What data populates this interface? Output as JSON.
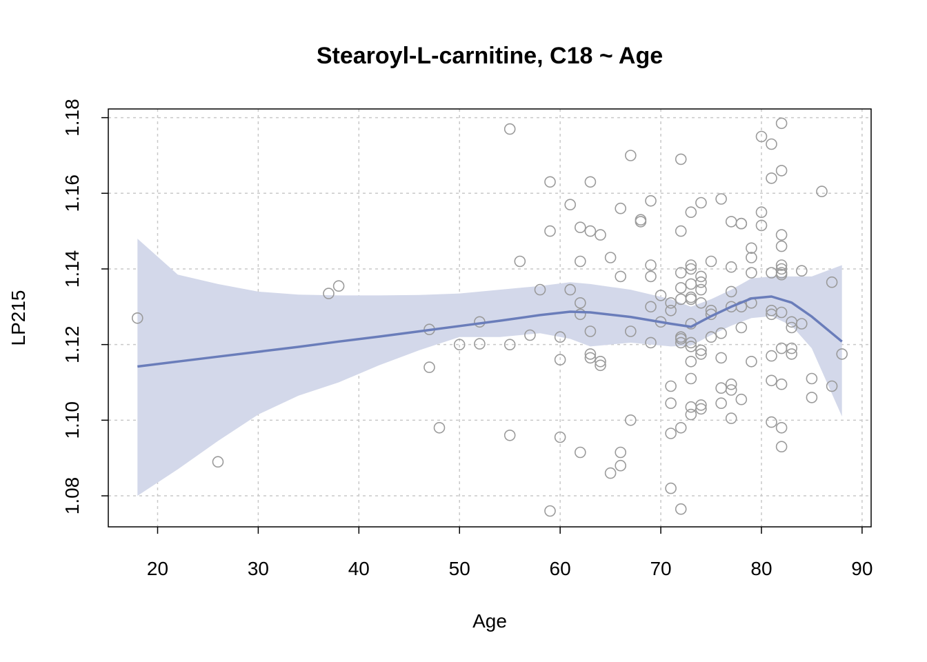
{
  "chart_data": {
    "type": "scatter",
    "title": "Stearoyl-L-carnitine, C18 ~ Age",
    "xlabel": "Age",
    "ylabel": "LP215",
    "xlim": [
      15.1,
      90.9
    ],
    "ylim": [
      1.0718,
      1.1823
    ],
    "xticks": [
      20,
      30,
      40,
      50,
      60,
      70,
      80,
      90
    ],
    "yticks": [
      1.08,
      1.1,
      1.12,
      1.14,
      1.16,
      1.18
    ],
    "ytick_labels": [
      "1.08",
      "1.10",
      "1.12",
      "1.14",
      "1.16",
      "1.18"
    ],
    "grid": true,
    "colors": {
      "points": "#9a9a9a",
      "fit_line": "#6a7dba",
      "band": "#d3d8ea"
    },
    "points": [
      [
        18,
        1.127
      ],
      [
        26,
        1.089
      ],
      [
        37,
        1.1335
      ],
      [
        38,
        1.1355
      ],
      [
        47,
        1.124
      ],
      [
        47,
        1.114
      ],
      [
        48,
        1.098
      ],
      [
        50,
        1.12
      ],
      [
        52,
        1.126
      ],
      [
        52,
        1.1202
      ],
      [
        55,
        1.177
      ],
      [
        55,
        1.12
      ],
      [
        55,
        1.096
      ],
      [
        56,
        1.142
      ],
      [
        57,
        1.1225
      ],
      [
        58,
        1.1345
      ],
      [
        59,
        1.163
      ],
      [
        59,
        1.15
      ],
      [
        59,
        1.076
      ],
      [
        60,
        1.122
      ],
      [
        60,
        1.116
      ],
      [
        60,
        1.0955
      ],
      [
        61,
        1.157
      ],
      [
        61,
        1.1345
      ],
      [
        62,
        1.151
      ],
      [
        62,
        1.142
      ],
      [
        62,
        1.131
      ],
      [
        62,
        1.128
      ],
      [
        62,
        1.0915
      ],
      [
        63,
        1.163
      ],
      [
        63,
        1.15
      ],
      [
        63,
        1.1235
      ],
      [
        63,
        1.1175
      ],
      [
        63,
        1.1165
      ],
      [
        64,
        1.149
      ],
      [
        64,
        1.1155
      ],
      [
        64,
        1.1145
      ],
      [
        65,
        1.143
      ],
      [
        65,
        1.086
      ],
      [
        66,
        1.156
      ],
      [
        66,
        1.138
      ],
      [
        66,
        1.0915
      ],
      [
        66,
        1.088
      ],
      [
        67,
        1.17
      ],
      [
        67,
        1.1235
      ],
      [
        67,
        1.1
      ],
      [
        68,
        1.153
      ],
      [
        68,
        1.1525
      ],
      [
        69,
        1.158
      ],
      [
        69,
        1.141
      ],
      [
        69,
        1.138
      ],
      [
        69,
        1.13
      ],
      [
        69,
        1.1205
      ],
      [
        70,
        1.133
      ],
      [
        70,
        1.126
      ],
      [
        71,
        1.131
      ],
      [
        71,
        1.129
      ],
      [
        71,
        1.109
      ],
      [
        71,
        1.1045
      ],
      [
        71,
        1.0965
      ],
      [
        71,
        1.082
      ],
      [
        72,
        1.169
      ],
      [
        72,
        1.15
      ],
      [
        72,
        1.139
      ],
      [
        72,
        1.135
      ],
      [
        72,
        1.132
      ],
      [
        72,
        1.122
      ],
      [
        72,
        1.1215
      ],
      [
        72,
        1.1205
      ],
      [
        72,
        1.098
      ],
      [
        72,
        1.0765
      ],
      [
        73,
        1.155
      ],
      [
        73,
        1.141
      ],
      [
        73,
        1.14
      ],
      [
        73,
        1.136
      ],
      [
        73,
        1.1325
      ],
      [
        73,
        1.132
      ],
      [
        73,
        1.1255
      ],
      [
        73,
        1.1205
      ],
      [
        73,
        1.1195
      ],
      [
        73,
        1.1155
      ],
      [
        73,
        1.111
      ],
      [
        73,
        1.1035
      ],
      [
        73,
        1.1015
      ],
      [
        74,
        1.1575
      ],
      [
        74,
        1.138
      ],
      [
        74,
        1.1365
      ],
      [
        74,
        1.1345
      ],
      [
        74,
        1.131
      ],
      [
        74,
        1.1185
      ],
      [
        74,
        1.1175
      ],
      [
        74,
        1.104
      ],
      [
        74,
        1.103
      ],
      [
        75,
        1.142
      ],
      [
        75,
        1.129
      ],
      [
        75,
        1.128
      ],
      [
        75,
        1.122
      ],
      [
        76,
        1.1585
      ],
      [
        76,
        1.123
      ],
      [
        76,
        1.1165
      ],
      [
        76,
        1.1085
      ],
      [
        76,
        1.1045
      ],
      [
        77,
        1.1525
      ],
      [
        77,
        1.1405
      ],
      [
        77,
        1.134
      ],
      [
        77,
        1.13
      ],
      [
        77,
        1.1095
      ],
      [
        77,
        1.108
      ],
      [
        77,
        1.1005
      ],
      [
        78,
        1.152
      ],
      [
        78,
        1.152
      ],
      [
        78,
        1.13
      ],
      [
        78,
        1.1245
      ],
      [
        78,
        1.1055
      ],
      [
        79,
        1.1455
      ],
      [
        79,
        1.143
      ],
      [
        79,
        1.139
      ],
      [
        79,
        1.131
      ],
      [
        79,
        1.1155
      ],
      [
        80,
        1.175
      ],
      [
        80,
        1.155
      ],
      [
        80,
        1.1515
      ],
      [
        81,
        1.173
      ],
      [
        81,
        1.164
      ],
      [
        81,
        1.139
      ],
      [
        81,
        1.129
      ],
      [
        81,
        1.128
      ],
      [
        81,
        1.117
      ],
      [
        81,
        1.1105
      ],
      [
        81,
        1.0995
      ],
      [
        82,
        1.1785
      ],
      [
        82,
        1.166
      ],
      [
        82,
        1.149
      ],
      [
        82,
        1.146
      ],
      [
        82,
        1.141
      ],
      [
        82,
        1.14
      ],
      [
        82,
        1.139
      ],
      [
        82,
        1.1385
      ],
      [
        82,
        1.1285
      ],
      [
        82,
        1.119
      ],
      [
        82,
        1.1095
      ],
      [
        82,
        1.098
      ],
      [
        82,
        1.093
      ],
      [
        83,
        1.126
      ],
      [
        83,
        1.1245
      ],
      [
        83,
        1.119
      ],
      [
        83,
        1.1175
      ],
      [
        84,
        1.1395
      ],
      [
        84,
        1.1255
      ],
      [
        85,
        1.111
      ],
      [
        85,
        1.106
      ],
      [
        86,
        1.1605
      ],
      [
        87,
        1.1365
      ],
      [
        87,
        1.109
      ],
      [
        88,
        1.1175
      ]
    ],
    "fit": {
      "x": [
        18,
        22,
        26,
        30,
        34,
        38,
        42,
        46,
        50,
        54,
        58,
        61,
        63,
        67,
        71,
        73,
        75,
        77,
        79,
        81,
        83,
        85,
        88
      ],
      "y": [
        1.1142,
        1.1155,
        1.1168,
        1.1181,
        1.1194,
        1.1208,
        1.1221,
        1.1235,
        1.1249,
        1.1263,
        1.1278,
        1.1287,
        1.1285,
        1.1273,
        1.1255,
        1.1247,
        1.1275,
        1.13,
        1.1322,
        1.1327,
        1.1311,
        1.1274,
        1.1208
      ],
      "lower": [
        1.08,
        1.087,
        1.0945,
        1.1015,
        1.1065,
        1.11,
        1.1145,
        1.1185,
        1.122,
        1.122,
        1.123,
        1.1215,
        1.1195,
        1.1205,
        1.1195,
        1.1197,
        1.1225,
        1.125,
        1.127,
        1.1275,
        1.125,
        1.119,
        1.101
      ],
      "upper": [
        1.148,
        1.1385,
        1.136,
        1.134,
        1.1332,
        1.133,
        1.133,
        1.1331,
        1.1335,
        1.1345,
        1.1355,
        1.1365,
        1.136,
        1.1345,
        1.132,
        1.13,
        1.132,
        1.1345,
        1.1375,
        1.138,
        1.138,
        1.138,
        1.141
      ]
    }
  }
}
